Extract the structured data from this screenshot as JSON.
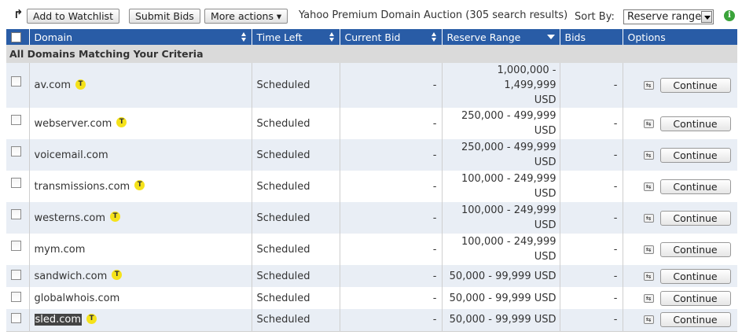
{
  "toolbar": {
    "add_watchlist_label": "Add to Watchlist",
    "submit_bids_label": "Submit Bids",
    "more_actions_label": "More actions ▾",
    "title": "Yahoo Premium Domain Auction (305 search results)",
    "sort_label": "Sort By:",
    "sort_value": "Reserve range"
  },
  "table": {
    "columns": [
      "Domain",
      "Time Left",
      "Current Bid",
      "Reserve Range",
      "Bids",
      "Options"
    ],
    "group_label": "All Domains Matching Your Criteria",
    "continue_label": "Continue",
    "rows": [
      {
        "domain": "av.com",
        "trademark": true,
        "time_left": "Scheduled",
        "current_bid": "-",
        "reserve_line1": "1,000,000 - 1,499,999",
        "reserve_line2": "USD",
        "bids": "-"
      },
      {
        "domain": "webserver.com",
        "trademark": true,
        "time_left": "Scheduled",
        "current_bid": "-",
        "reserve_line1": "250,000 - 499,999",
        "reserve_line2": "USD",
        "bids": "-"
      },
      {
        "domain": "voicemail.com",
        "trademark": false,
        "time_left": "Scheduled",
        "current_bid": "-",
        "reserve_line1": "250,000 - 499,999",
        "reserve_line2": "USD",
        "bids": "-"
      },
      {
        "domain": "transmissions.com",
        "trademark": true,
        "time_left": "Scheduled",
        "current_bid": "-",
        "reserve_line1": "100,000 - 249,999",
        "reserve_line2": "USD",
        "bids": "-"
      },
      {
        "domain": "westerns.com",
        "trademark": true,
        "time_left": "Scheduled",
        "current_bid": "-",
        "reserve_line1": "100,000 - 249,999",
        "reserve_line2": "USD",
        "bids": "-"
      },
      {
        "domain": "mym.com",
        "trademark": false,
        "time_left": "Scheduled",
        "current_bid": "-",
        "reserve_line1": "100,000 - 249,999",
        "reserve_line2": "USD",
        "bids": "-"
      },
      {
        "domain": "sandwich.com",
        "trademark": true,
        "time_left": "Scheduled",
        "current_bid": "-",
        "reserve_line1": "50,000 - 99,999 USD",
        "reserve_line2": "",
        "bids": "-"
      },
      {
        "domain": "globalwhois.com",
        "trademark": false,
        "time_left": "Scheduled",
        "current_bid": "-",
        "reserve_line1": "50,000 - 99,999 USD",
        "reserve_line2": "",
        "bids": "-"
      },
      {
        "domain": "sled.com",
        "trademark": true,
        "time_left": "Scheduled",
        "current_bid": "-",
        "reserve_line1": "50,000 - 99,999 USD",
        "reserve_line2": "",
        "bids": "-"
      }
    ],
    "trademark_badge": "T"
  },
  "icons": {
    "toolbar_arrow": "arrow-turn-icon",
    "info": "info-icon",
    "option": "watch-toggle-icon"
  },
  "colors": {
    "header_bg": "#295ca6",
    "row_alt": "#e9eef5",
    "group_bg": "#dadada",
    "badge": "#f5e21a",
    "info": "#3aa33a"
  }
}
